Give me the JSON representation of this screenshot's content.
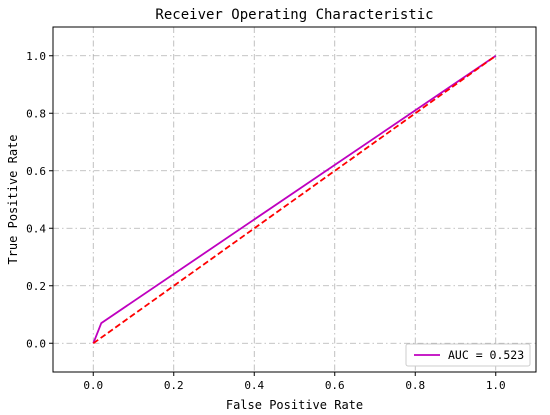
{
  "chart_data": {
    "type": "line",
    "title": "Receiver Operating Characteristic",
    "xlabel": "False Positive Rate",
    "ylabel": "True Positive Rate",
    "xlim": [
      -0.1,
      1.1
    ],
    "ylim": [
      -0.1,
      1.1
    ],
    "xticks": [
      "0.0",
      "0.2",
      "0.4",
      "0.6",
      "0.8",
      "1.0"
    ],
    "yticks": [
      "0.0",
      "0.2",
      "0.4",
      "0.6",
      "0.8",
      "1.0"
    ],
    "grid": true,
    "legend_position": "lower-right",
    "series": [
      {
        "name": "AUC = 0.523",
        "color": "#bf00bf",
        "style": "solid",
        "x": [
          0.0,
          0.02,
          1.0
        ],
        "y": [
          0.0,
          0.07,
          1.0
        ]
      },
      {
        "name": "",
        "color": "#ff0000",
        "style": "dashed",
        "x": [
          0.0,
          1.0
        ],
        "y": [
          0.0,
          1.0
        ]
      }
    ]
  }
}
